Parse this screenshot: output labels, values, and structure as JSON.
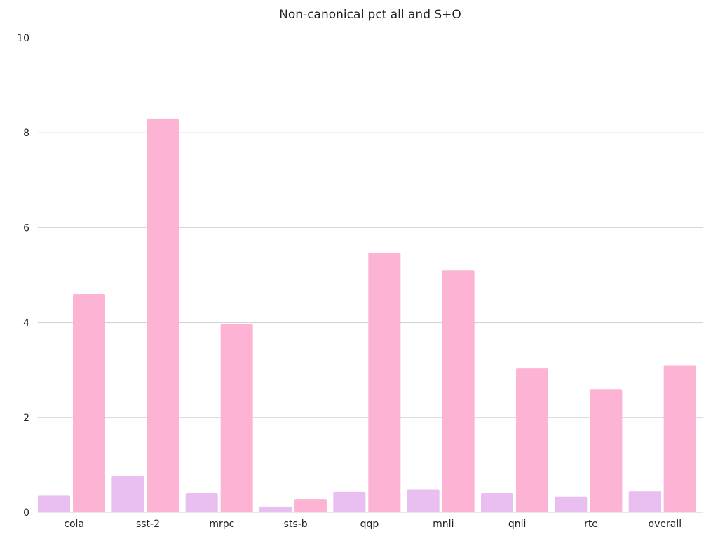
{
  "chart_data": {
    "type": "bar",
    "title": "Non-canonical pct all and S+O",
    "xlabel": "",
    "ylabel": "",
    "ylim": [
      0,
      10
    ],
    "yticks": [
      0,
      2,
      4,
      6,
      8,
      10
    ],
    "grid": true,
    "legend": "none",
    "categories": [
      "cola",
      "sst-2",
      "mrpc",
      "sts-b",
      "qqp",
      "mnli",
      "qnli",
      "rte",
      "overall"
    ],
    "series": [
      {
        "values": [
          0.35,
          0.77,
          0.4,
          0.12,
          0.43,
          0.48,
          0.4,
          0.33,
          0.44
        ],
        "color": "#e8bff0"
      },
      {
        "values": [
          4.6,
          8.3,
          3.97,
          0.28,
          5.47,
          5.1,
          3.03,
          2.6,
          3.1
        ],
        "color": "#fdb3d3"
      }
    ]
  }
}
